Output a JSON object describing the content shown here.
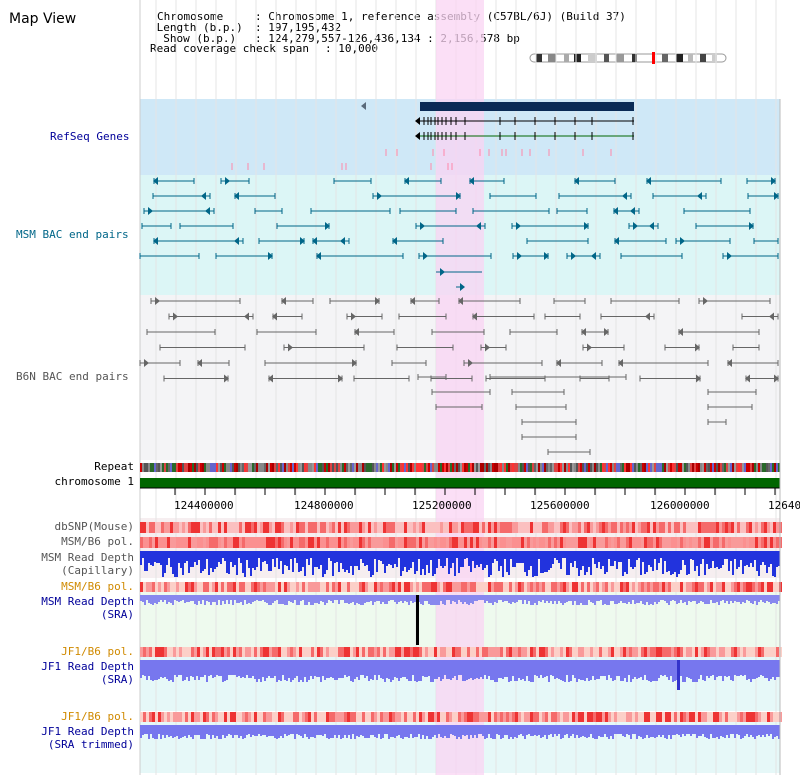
{
  "title": "Map View",
  "info": {
    "chromosome_key": "Chromosome",
    "chromosome_val": ": Chromosome 1, reference assembly (C57BL/6J) (Build 37)",
    "length_key": " Length (b.p.)",
    "length_val": ": 197,195,432",
    "show_key": "  Show (b.p.)",
    "show_val": ": 124,279,557-126,436,134 : 2,156,578 bp",
    "coverage_key": "Read coverage check span",
    "coverage_val": ": 10,000"
  },
  "tracks": {
    "refseq": "RefSeq Genes",
    "msm_bac": "MSM BAC end pairs",
    "b6n_bac": "B6N BAC end pairs",
    "repeat": "Repeat",
    "chromosome": "chromosome 1",
    "dbsnp": "dbSNP(Mouse)",
    "msm_b6_pol": "MSM/B6 pol.",
    "msm_depth_cap_1": "MSM Read Depth",
    "msm_depth_cap_2": "(Capillary)",
    "msm_b6_pol_2": "MSM/B6 pol.",
    "msm_depth_sra_1": "MSM Read Depth",
    "msm_depth_sra_2": "(SRA)",
    "jf1_b6_pol": "JF1/B6 pol.",
    "jf1_depth_sra_1": "JF1 Read Depth",
    "jf1_depth_sra_2": "(SRA)",
    "jf1_b6_pol_2": "JF1/B6 pol.",
    "jf1_depth_trim_1": "JF1 Read Depth",
    "jf1_depth_trim_2": "(SRA trimmed)"
  },
  "axis": {
    "ticks": [
      "124400000",
      "124800000",
      "125200000",
      "125600000",
      "126000000",
      "12640"
    ]
  },
  "colors": {
    "refseq_bg": "#cfe8f7",
    "msm_bg": "#dcf6f6",
    "b6n_bg": "#f4f4f6",
    "highlight": "#f9d4f3",
    "msm_label": "#006688",
    "b6n_label": "#555555",
    "blue_label": "#000099",
    "orange_label": "#d08a00",
    "chromosome_bar": "#006600"
  }
}
